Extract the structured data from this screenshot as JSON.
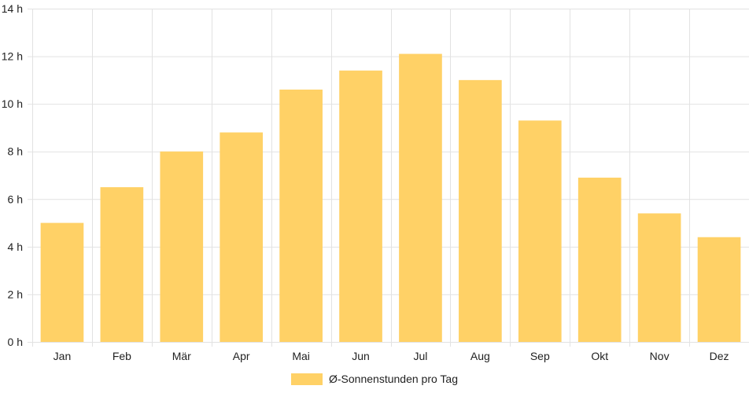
{
  "chart_data": {
    "type": "bar",
    "categories": [
      "Jan",
      "Feb",
      "Mär",
      "Apr",
      "Mai",
      "Jun",
      "Jul",
      "Aug",
      "Sep",
      "Okt",
      "Nov",
      "Dez"
    ],
    "series": [
      {
        "name": "Ø-Sonnenstunden pro Tag",
        "values": [
          5.0,
          6.5,
          8.0,
          8.8,
          10.6,
          11.4,
          12.1,
          11.0,
          9.3,
          6.9,
          5.4,
          4.4
        ],
        "color": "#FFD166"
      }
    ],
    "ylim": [
      0,
      14
    ],
    "yticks": [
      "0 h",
      "2 h",
      "4 h",
      "6 h",
      "8 h",
      "10 h",
      "12 h",
      "14 h"
    ],
    "ytick_values": [
      0,
      2,
      4,
      6,
      8,
      10,
      12,
      14
    ],
    "grid": true,
    "legend_position": "bottom-center"
  }
}
